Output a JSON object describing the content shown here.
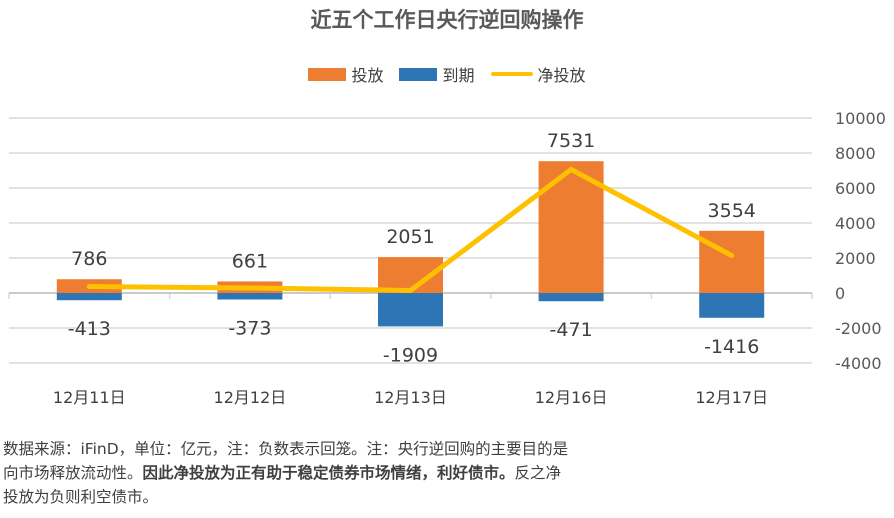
{
  "chart_data": {
    "type": "bar",
    "title": "近五个工作日央行逆回购操作",
    "categories": [
      "12月11日",
      "12月12日",
      "12月13日",
      "12月16日",
      "12月17日"
    ],
    "series": [
      {
        "name": "投放",
        "type": "bar",
        "color": "#ED7D31",
        "values": [
          786,
          661,
          2051,
          7531,
          3554
        ]
      },
      {
        "name": "到期",
        "type": "bar",
        "color": "#2E75B6",
        "values": [
          -413,
          -373,
          -1909,
          -471,
          -1416
        ]
      },
      {
        "name": "净投放",
        "type": "line",
        "color": "#FFC000",
        "values": [
          373,
          288,
          142,
          7060,
          2138
        ]
      }
    ],
    "xlabel": "",
    "ylabel": "",
    "ylim": [
      -4000,
      10000
    ],
    "yticks": [
      10000,
      8000,
      6000,
      4000,
      2000,
      0,
      -2000,
      -4000
    ],
    "y_axis_position": "right",
    "grid": true,
    "legend_position": "top",
    "stacked": true
  },
  "legend": [
    {
      "label": "投放",
      "color": "#ED7D31",
      "kind": "bar"
    },
    {
      "label": "到期",
      "color": "#2E75B6",
      "kind": "bar"
    },
    {
      "label": "净投放",
      "color": "#FFC000",
      "kind": "line"
    }
  ],
  "note": {
    "line1": "数据来源：iFinD，单位：亿元，注：负数表示回笼。注：央行逆回购的主要目的是",
    "line2_prefix": "向市场释放流动性。",
    "line2_bold": "因此净投放为正有助于稳定债券市场情绪，利好债市。",
    "line2_suffix": "反之净",
    "line3": "投放为负则利空债市。"
  }
}
